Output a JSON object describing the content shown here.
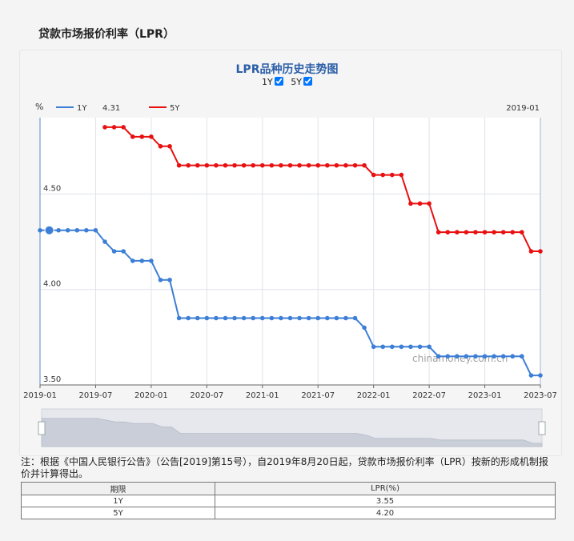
{
  "page": {
    "title": "贷款市场报价利率（LPR）",
    "watermark": "chinamoney.com.cn",
    "note": "注：根据《中国人民银行公告》（公告[2019]第15号），自2019年8月20日起，贷款市场报价利率（LPR）按新的形成机制报价并计算得出。"
  },
  "toggles": [
    {
      "label": "1Y",
      "checked": true
    },
    {
      "label": "5Y",
      "checked": true
    }
  ],
  "legend": {
    "unit": "%",
    "items": [
      {
        "label": "1Y",
        "value": "4.31"
      },
      {
        "label": "5Y",
        "value": ""
      }
    ],
    "date": "2019-01"
  },
  "table": {
    "headers": [
      "期限",
      "LPR(%)"
    ],
    "rows": [
      [
        "1Y",
        "3.55"
      ],
      [
        "5Y",
        "4.20"
      ]
    ]
  },
  "chart_data": {
    "type": "line",
    "title": "LPR品种历史走势图",
    "xlabel": "",
    "ylabel": "%",
    "ylim": [
      3.5,
      4.9
    ],
    "xlim": [
      "2019-01",
      "2023-07"
    ],
    "x_tick_labels": [
      "2019-01",
      "2019-07",
      "2020-01",
      "2020-07",
      "2021-01",
      "2021-07",
      "2022-01",
      "2022-07",
      "2023-01",
      "2023-07"
    ],
    "y_tick_labels": [
      "4.50",
      "4.00",
      "3.50"
    ],
    "grid": true,
    "legend_position": "top-left",
    "x": [
      "2019-01",
      "2019-02",
      "2019-03",
      "2019-04",
      "2019-05",
      "2019-06",
      "2019-07",
      "2019-08",
      "2019-09",
      "2019-10",
      "2019-11",
      "2019-12",
      "2020-01",
      "2020-02",
      "2020-03",
      "2020-04",
      "2020-05",
      "2020-06",
      "2020-07",
      "2020-08",
      "2020-09",
      "2020-10",
      "2020-11",
      "2020-12",
      "2021-01",
      "2021-02",
      "2021-03",
      "2021-04",
      "2021-05",
      "2021-06",
      "2021-07",
      "2021-08",
      "2021-09",
      "2021-10",
      "2021-11",
      "2021-12",
      "2022-01",
      "2022-02",
      "2022-03",
      "2022-04",
      "2022-05",
      "2022-06",
      "2022-07",
      "2022-08",
      "2022-09",
      "2022-10",
      "2022-11",
      "2022-12",
      "2023-01",
      "2023-02",
      "2023-03",
      "2023-04",
      "2023-05",
      "2023-06",
      "2023-07"
    ],
    "series": [
      {
        "name": "1Y",
        "color": "#3d7fd6",
        "values": [
          4.31,
          4.31,
          4.31,
          4.31,
          4.31,
          4.31,
          4.31,
          4.25,
          4.2,
          4.2,
          4.15,
          4.15,
          4.15,
          4.05,
          4.05,
          3.85,
          3.85,
          3.85,
          3.85,
          3.85,
          3.85,
          3.85,
          3.85,
          3.85,
          3.85,
          3.85,
          3.85,
          3.85,
          3.85,
          3.85,
          3.85,
          3.85,
          3.85,
          3.85,
          3.85,
          3.8,
          3.7,
          3.7,
          3.7,
          3.7,
          3.7,
          3.7,
          3.7,
          3.65,
          3.65,
          3.65,
          3.65,
          3.65,
          3.65,
          3.65,
          3.65,
          3.65,
          3.65,
          3.55,
          3.55
        ]
      },
      {
        "name": "5Y",
        "color": "#e81010",
        "values": [
          null,
          null,
          null,
          null,
          null,
          null,
          null,
          4.85,
          4.85,
          4.85,
          4.8,
          4.8,
          4.8,
          4.75,
          4.75,
          4.65,
          4.65,
          4.65,
          4.65,
          4.65,
          4.65,
          4.65,
          4.65,
          4.65,
          4.65,
          4.65,
          4.65,
          4.65,
          4.65,
          4.65,
          4.65,
          4.65,
          4.65,
          4.65,
          4.65,
          4.65,
          4.6,
          4.6,
          4.6,
          4.6,
          4.45,
          4.45,
          4.45,
          4.3,
          4.3,
          4.3,
          4.3,
          4.3,
          4.3,
          4.3,
          4.3,
          4.3,
          4.3,
          4.2,
          4.2
        ]
      }
    ],
    "highlight": {
      "series": "1Y",
      "x": "2019-02",
      "value": 4.31
    }
  },
  "slider": {
    "start": "2019-01",
    "end": "2023-07"
  }
}
